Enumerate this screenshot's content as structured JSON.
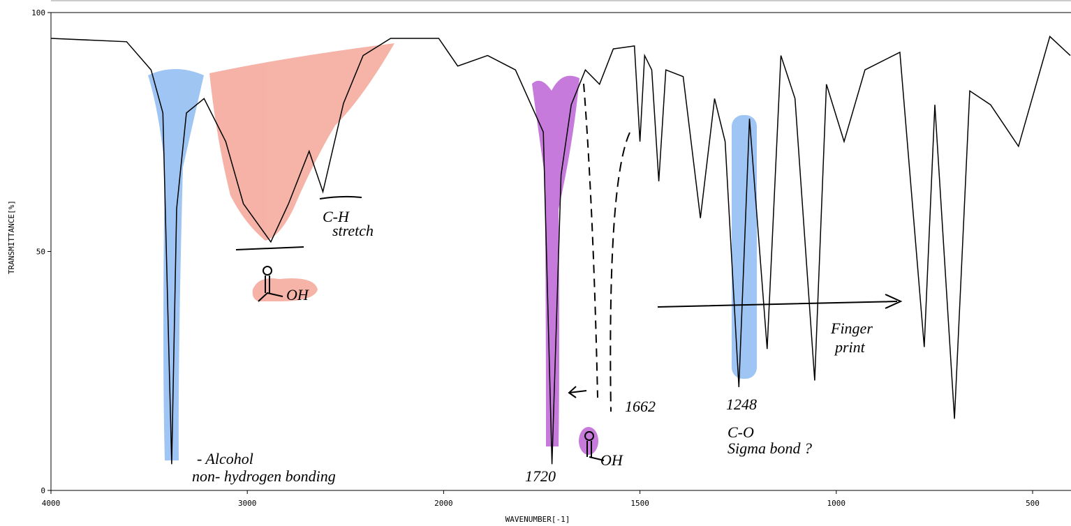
{
  "chart_data": {
    "type": "line",
    "xlabel": "WAVENUMBER[-1]",
    "ylabel": "TRANSMITTANCE[%]",
    "x": [
      4000,
      3615,
      3490,
      3430,
      3385,
      3360,
      3310,
      3220,
      3110,
      3020,
      2880,
      2790,
      2685,
      2615,
      2510,
      2410,
      2270,
      2025,
      1964,
      1888,
      1817,
      1746,
      1724,
      1701,
      1675,
      1639,
      1603,
      1568,
      1514,
      1500,
      1488,
      1470,
      1452,
      1434,
      1390,
      1346,
      1310,
      1283,
      1248,
      1221,
      1176,
      1141,
      1105,
      1055,
      1025,
      980,
      927,
      838,
      776,
      749,
      699,
      660,
      607,
      536,
      456,
      404
    ],
    "values": [
      94.6,
      93.9,
      88,
      79,
      5.5,
      59,
      79,
      82,
      73,
      60,
      52,
      60,
      71,
      62.5,
      81,
      91,
      94.6,
      94.6,
      88.8,
      91,
      88,
      75,
      5.5,
      66,
      80.7,
      88,
      85,
      92.4,
      93,
      73,
      91,
      88,
      64.7,
      88,
      86.6,
      57,
      82,
      73,
      21.6,
      77.8,
      29.6,
      91,
      82,
      23,
      85,
      73,
      88,
      91.7,
      30,
      80.7,
      15,
      83.6,
      80.7,
      72,
      95,
      91
    ],
    "color": "#000000",
    "xlim": [
      4000,
      404
    ],
    "ylim": [
      0,
      100
    ],
    "xticks": [
      4000,
      3000,
      2000,
      1500,
      1000,
      500
    ],
    "yticks": [
      0,
      50,
      100
    ],
    "annotations": [
      "C-H",
      "stretch",
      "- Alcohol",
      "non- hydrogen bonding",
      "1720",
      "1662",
      "1248",
      "C-O",
      "Sigma bond ?",
      "Finger",
      "print",
      "OH",
      "OH"
    ]
  }
}
